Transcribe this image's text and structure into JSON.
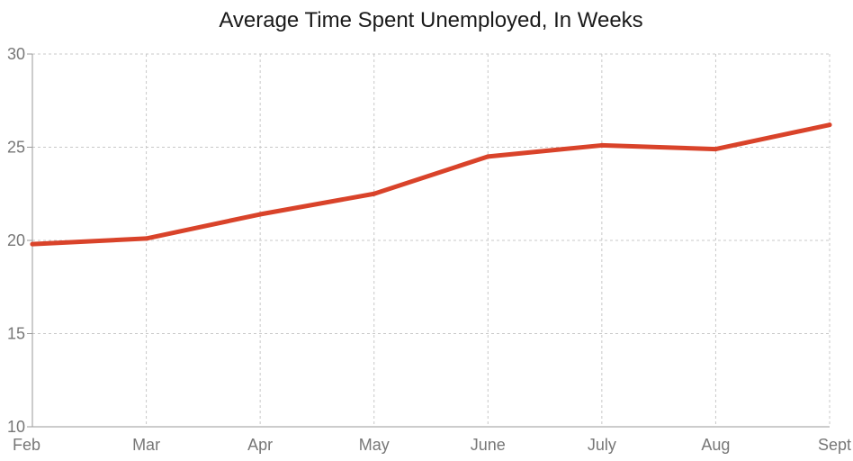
{
  "chart_data": {
    "type": "line",
    "title": "Average Time Spent Unemployed, In Weeks",
    "xlabel": "",
    "ylabel": "",
    "categories": [
      "Feb",
      "Mar",
      "Apr",
      "May",
      "June",
      "July",
      "Aug",
      "Sept"
    ],
    "series": [
      {
        "values": [
          19.8,
          20.1,
          21.4,
          22.5,
          24.5,
          25.1,
          24.9,
          26.2
        ]
      }
    ],
    "ylim": [
      10,
      30
    ],
    "yticks": [
      "10",
      "15",
      "20",
      "25",
      "30"
    ],
    "grid": true,
    "legend": "none",
    "line_color": "#d9432a"
  }
}
